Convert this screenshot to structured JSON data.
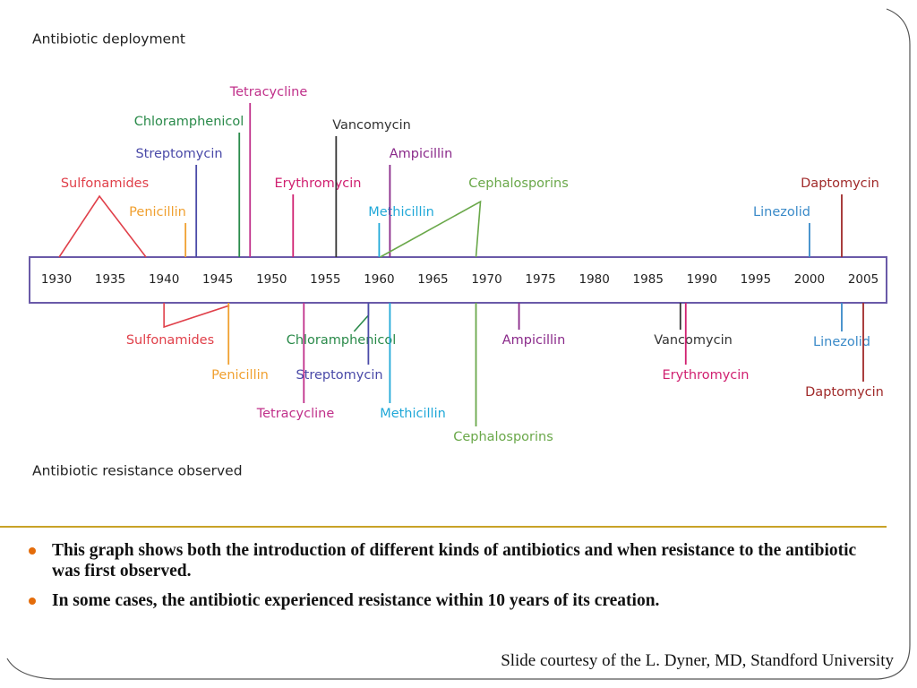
{
  "timeline": {
    "ticks": [
      1930,
      1935,
      1940,
      1945,
      1950,
      1955,
      1960,
      1965,
      1970,
      1975,
      1980,
      1985,
      1990,
      1995,
      2000,
      2005
    ]
  },
  "deployment": {
    "heading": "Antibiotic deployment",
    "items": [
      {
        "label": "Sulfonamides",
        "year": 1934,
        "color": "#e0404a"
      },
      {
        "label": "Penicillin",
        "year": 1942,
        "color": "#f0a030"
      },
      {
        "label": "Streptomycin",
        "year": 1943,
        "color": "#4a4aa8"
      },
      {
        "label": "Chloramphenicol",
        "year": 1947,
        "color": "#2a8a4a"
      },
      {
        "label": "Tetracycline",
        "year": 1948,
        "color": "#c0308a"
      },
      {
        "label": "Erythromycin",
        "year": 1952,
        "color": "#d02070"
      },
      {
        "label": "Vancomycin",
        "year": 1956,
        "color": "#333333"
      },
      {
        "label": "Methicillin",
        "year": 1960,
        "color": "#20a8d8"
      },
      {
        "label": "Ampicillin",
        "year": 1961,
        "color": "#8a2a8a"
      },
      {
        "label": "Cephalosporins",
        "year": 1969,
        "color": "#6aa84a"
      },
      {
        "label": "Linezolid",
        "year": 2000,
        "color": "#3a8ac8"
      },
      {
        "label": "Daptomycin",
        "year": 2003,
        "color": "#a02a2a"
      }
    ]
  },
  "resistance": {
    "heading": "Antibiotic resistance observed",
    "items": [
      {
        "label": "Sulfonamides",
        "year": 1940,
        "color": "#e0404a"
      },
      {
        "label": "Penicillin",
        "year": 1946,
        "color": "#f0a030"
      },
      {
        "label": "Tetracycline",
        "year": 1953,
        "color": "#c0308a"
      },
      {
        "label": "Chloramphenicol",
        "year": 1959,
        "color": "#2a8a4a"
      },
      {
        "label": "Streptomycin",
        "year": 1959,
        "color": "#4a4aa8"
      },
      {
        "label": "Methicillin",
        "year": 1961,
        "color": "#20a8d8"
      },
      {
        "label": "Cephalosporins",
        "year": 1969,
        "color": "#6aa84a"
      },
      {
        "label": "Ampicillin",
        "year": 1973,
        "color": "#8a2a8a"
      },
      {
        "label": "Vancomycin",
        "year": 1988,
        "color": "#333333"
      },
      {
        "label": "Erythromycin",
        "year": 1988,
        "color": "#d02070"
      },
      {
        "label": "Linezolid",
        "year": 2003,
        "color": "#3a8ac8"
      },
      {
        "label": "Daptomycin",
        "year": 2005,
        "color": "#a02a2a"
      }
    ]
  },
  "notes": [
    "This graph shows both the introduction of different kinds of antibiotics and when resistance to the antibiotic was first observed.",
    "In some cases, the antibiotic experienced resistance within 10 years of its creation."
  ],
  "credit": "Slide courtesy of the L. Dyner, MD, Standford University"
}
